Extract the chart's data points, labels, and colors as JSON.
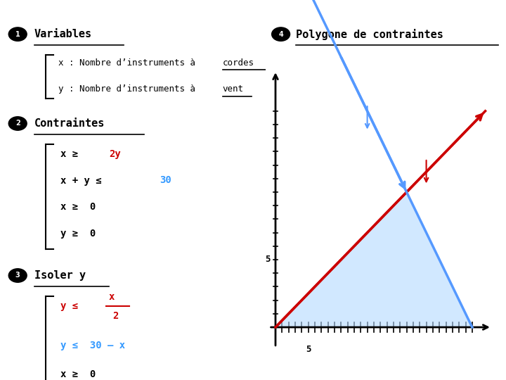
{
  "background_color": "#ffffff",
  "left_panel": {
    "variables_title": "Variables",
    "var_x_prefix": "x : Nombre d’instruments à ",
    "var_x_suffix": "cordes",
    "var_y_prefix": "y : Nombre d’instruments à ",
    "var_y_suffix": "vent",
    "contraintes_title": "Contraintes",
    "isoler_title": "Isoler y"
  },
  "right_panel": {
    "polygone_title": "Polygone de contraintes",
    "line1_color": "#cc0000",
    "line2_color": "#5599ff",
    "fill_color": "#b3d9ff",
    "fill_alpha": 0.6
  },
  "black": "#000000",
  "red": "#cc0000",
  "blue": "#3399ff"
}
